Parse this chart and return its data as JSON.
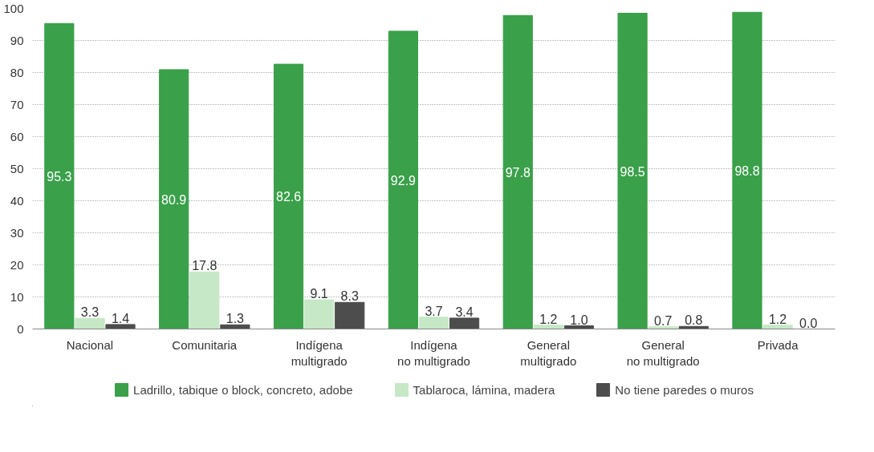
{
  "chart_data": {
    "type": "bar",
    "categories": [
      "Nacional",
      "Comunitaria",
      "Indígena\nmultigrado",
      "Indígena\nno multigrado",
      "General\nmultigrado",
      "General\nno multigrado",
      "Privada"
    ],
    "series": [
      {
        "name": "Ladrillo, tabique o block, concreto, adobe",
        "color": "#3aa04a",
        "values": [
          95.3,
          80.9,
          82.6,
          92.9,
          97.8,
          98.5,
          98.8
        ],
        "value_labels": [
          "95.3",
          "80.9",
          "82.6",
          "92.9",
          "97.8",
          "98.5",
          "98.8"
        ]
      },
      {
        "name": "Tablaroca, lámina, madera",
        "color": "#c6e8c6",
        "values": [
          3.3,
          17.8,
          9.1,
          3.7,
          1.2,
          0.7,
          1.2
        ],
        "value_labels": [
          "3.3",
          "17.8",
          "9.1",
          "3.7",
          "1.2",
          "0.7",
          "1.2"
        ]
      },
      {
        "name": "No tiene paredes o muros",
        "color": "#4d4d4d",
        "values": [
          1.4,
          1.3,
          8.3,
          3.4,
          1.0,
          0.8,
          0.0
        ],
        "value_labels": [
          "1.4",
          "1.3",
          "8.3",
          "3.4",
          "1.0",
          "0.8",
          "0.0"
        ]
      }
    ],
    "ylim": [
      0,
      100
    ],
    "yticks": [
      0,
      10,
      20,
      30,
      40,
      50,
      60,
      70,
      80,
      90,
      100
    ],
    "grid": "y",
    "legend": "bottom"
  }
}
